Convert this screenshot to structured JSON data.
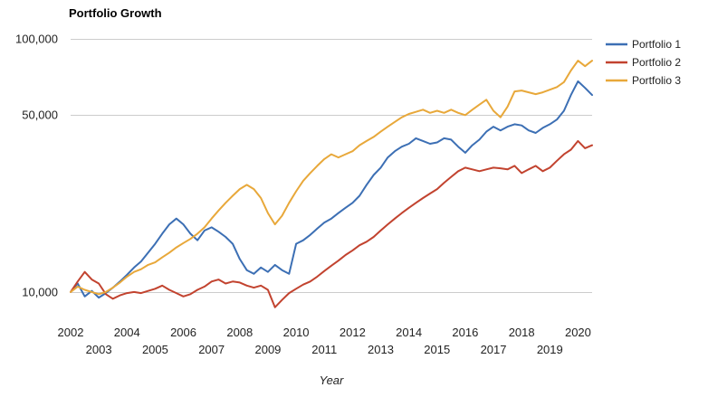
{
  "chart_data": {
    "type": "line",
    "title": "Portfolio Growth",
    "xlabel": "Year",
    "ylabel": "",
    "y_scale": "log",
    "ylim": [
      8000,
      100000
    ],
    "xlim": [
      2002,
      2020.5
    ],
    "y_ticks": [
      {
        "value": 10000,
        "label": "10,000"
      },
      {
        "value": 50000,
        "label": "50,000"
      },
      {
        "value": 100000,
        "label": "100,000"
      }
    ],
    "x_ticks": [
      {
        "value": 2002,
        "label": "2002"
      },
      {
        "value": 2003,
        "label": "2003"
      },
      {
        "value": 2004,
        "label": "2004"
      },
      {
        "value": 2005,
        "label": "2005"
      },
      {
        "value": 2006,
        "label": "2006"
      },
      {
        "value": 2007,
        "label": "2007"
      },
      {
        "value": 2008,
        "label": "2008"
      },
      {
        "value": 2009,
        "label": "2009"
      },
      {
        "value": 2010,
        "label": "2010"
      },
      {
        "value": 2011,
        "label": "2011"
      },
      {
        "value": 2012,
        "label": "2012"
      },
      {
        "value": 2013,
        "label": "2013"
      },
      {
        "value": 2014,
        "label": "2014"
      },
      {
        "value": 2015,
        "label": "2015"
      },
      {
        "value": 2016,
        "label": "2016"
      },
      {
        "value": 2017,
        "label": "2017"
      },
      {
        "value": 2018,
        "label": "2018"
      },
      {
        "value": 2019,
        "label": "2019"
      },
      {
        "value": 2020,
        "label": "2020"
      }
    ],
    "grid": true,
    "legend_position": "right",
    "series": [
      {
        "name": "Portfolio 1",
        "color": "#3c6fb4",
        "points": [
          [
            2002.0,
            10000
          ],
          [
            2002.25,
            10800
          ],
          [
            2002.5,
            9600
          ],
          [
            2002.75,
            10100
          ],
          [
            2003.0,
            9500
          ],
          [
            2003.25,
            9900
          ],
          [
            2003.5,
            10400
          ],
          [
            2003.75,
            11000
          ],
          [
            2004.0,
            11700
          ],
          [
            2004.25,
            12500
          ],
          [
            2004.5,
            13200
          ],
          [
            2004.75,
            14300
          ],
          [
            2005.0,
            15500
          ],
          [
            2005.25,
            17000
          ],
          [
            2005.5,
            18500
          ],
          [
            2005.75,
            19500
          ],
          [
            2006.0,
            18500
          ],
          [
            2006.25,
            17000
          ],
          [
            2006.5,
            16000
          ],
          [
            2006.75,
            17500
          ],
          [
            2007.0,
            18000
          ],
          [
            2007.25,
            17300
          ],
          [
            2007.5,
            16500
          ],
          [
            2007.75,
            15500
          ],
          [
            2008.0,
            13500
          ],
          [
            2008.25,
            12200
          ],
          [
            2008.5,
            11800
          ],
          [
            2008.75,
            12500
          ],
          [
            2009.0,
            12000
          ],
          [
            2009.25,
            12800
          ],
          [
            2009.5,
            12200
          ],
          [
            2009.75,
            11800
          ],
          [
            2010.0,
            15500
          ],
          [
            2010.25,
            16000
          ],
          [
            2010.5,
            16800
          ],
          [
            2010.75,
            17800
          ],
          [
            2011.0,
            18800
          ],
          [
            2011.25,
            19500
          ],
          [
            2011.5,
            20500
          ],
          [
            2011.75,
            21500
          ],
          [
            2012.0,
            22500
          ],
          [
            2012.25,
            24000
          ],
          [
            2012.5,
            26500
          ],
          [
            2012.75,
            29000
          ],
          [
            2013.0,
            31000
          ],
          [
            2013.25,
            34000
          ],
          [
            2013.5,
            36000
          ],
          [
            2013.75,
            37500
          ],
          [
            2014.0,
            38500
          ],
          [
            2014.25,
            40500
          ],
          [
            2014.5,
            39500
          ],
          [
            2014.75,
            38500
          ],
          [
            2015.0,
            39000
          ],
          [
            2015.25,
            40500
          ],
          [
            2015.5,
            40000
          ],
          [
            2015.75,
            37500
          ],
          [
            2016.0,
            35500
          ],
          [
            2016.25,
            38000
          ],
          [
            2016.5,
            40000
          ],
          [
            2016.75,
            43000
          ],
          [
            2017.0,
            45000
          ],
          [
            2017.25,
            43500
          ],
          [
            2017.5,
            45000
          ],
          [
            2017.75,
            46000
          ],
          [
            2018.0,
            45500
          ],
          [
            2018.25,
            43500
          ],
          [
            2018.5,
            42500
          ],
          [
            2018.75,
            44500
          ],
          [
            2019.0,
            46000
          ],
          [
            2019.25,
            48000
          ],
          [
            2019.5,
            52000
          ],
          [
            2019.75,
            60000
          ],
          [
            2020.0,
            68000
          ],
          [
            2020.25,
            64000
          ],
          [
            2020.5,
            60000
          ]
        ]
      },
      {
        "name": "Portfolio 2",
        "color": "#c2432f",
        "points": [
          [
            2002.0,
            10000
          ],
          [
            2002.25,
            11000
          ],
          [
            2002.5,
            12000
          ],
          [
            2002.75,
            11200
          ],
          [
            2003.0,
            10800
          ],
          [
            2003.25,
            9800
          ],
          [
            2003.5,
            9400
          ],
          [
            2003.75,
            9700
          ],
          [
            2004.0,
            9900
          ],
          [
            2004.25,
            10000
          ],
          [
            2004.5,
            9900
          ],
          [
            2004.75,
            10100
          ],
          [
            2005.0,
            10300
          ],
          [
            2005.25,
            10600
          ],
          [
            2005.5,
            10200
          ],
          [
            2005.75,
            9900
          ],
          [
            2006.0,
            9600
          ],
          [
            2006.25,
            9800
          ],
          [
            2006.5,
            10200
          ],
          [
            2006.75,
            10500
          ],
          [
            2007.0,
            11000
          ],
          [
            2007.25,
            11200
          ],
          [
            2007.5,
            10800
          ],
          [
            2007.75,
            11000
          ],
          [
            2008.0,
            10900
          ],
          [
            2008.25,
            10600
          ],
          [
            2008.5,
            10400
          ],
          [
            2008.75,
            10600
          ],
          [
            2009.0,
            10200
          ],
          [
            2009.25,
            8700
          ],
          [
            2009.5,
            9300
          ],
          [
            2009.75,
            9900
          ],
          [
            2010.0,
            10300
          ],
          [
            2010.25,
            10700
          ],
          [
            2010.5,
            11000
          ],
          [
            2010.75,
            11500
          ],
          [
            2011.0,
            12100
          ],
          [
            2011.25,
            12700
          ],
          [
            2011.5,
            13300
          ],
          [
            2011.75,
            14000
          ],
          [
            2012.0,
            14600
          ],
          [
            2012.25,
            15300
          ],
          [
            2012.5,
            15800
          ],
          [
            2012.75,
            16500
          ],
          [
            2013.0,
            17500
          ],
          [
            2013.25,
            18500
          ],
          [
            2013.5,
            19500
          ],
          [
            2013.75,
            20500
          ],
          [
            2014.0,
            21500
          ],
          [
            2014.25,
            22500
          ],
          [
            2014.5,
            23500
          ],
          [
            2014.75,
            24500
          ],
          [
            2015.0,
            25500
          ],
          [
            2015.25,
            27000
          ],
          [
            2015.5,
            28500
          ],
          [
            2015.75,
            30000
          ],
          [
            2016.0,
            31000
          ],
          [
            2016.25,
            30500
          ],
          [
            2016.5,
            30000
          ],
          [
            2016.75,
            30500
          ],
          [
            2017.0,
            31000
          ],
          [
            2017.25,
            30800
          ],
          [
            2017.5,
            30500
          ],
          [
            2017.75,
            31500
          ],
          [
            2018.0,
            29500
          ],
          [
            2018.25,
            30500
          ],
          [
            2018.5,
            31500
          ],
          [
            2018.75,
            30000
          ],
          [
            2019.0,
            31000
          ],
          [
            2019.25,
            33000
          ],
          [
            2019.5,
            35000
          ],
          [
            2019.75,
            36500
          ],
          [
            2020.0,
            39500
          ],
          [
            2020.25,
            37000
          ],
          [
            2020.5,
            38000
          ]
        ]
      },
      {
        "name": "Portfolio 3",
        "color": "#e8a83a",
        "points": [
          [
            2002.0,
            10000
          ],
          [
            2002.25,
            10500
          ],
          [
            2002.5,
            10200
          ],
          [
            2002.75,
            10000
          ],
          [
            2003.0,
            9800
          ],
          [
            2003.25,
            10000
          ],
          [
            2003.5,
            10400
          ],
          [
            2003.75,
            10900
          ],
          [
            2004.0,
            11500
          ],
          [
            2004.25,
            12000
          ],
          [
            2004.5,
            12300
          ],
          [
            2004.75,
            12800
          ],
          [
            2005.0,
            13100
          ],
          [
            2005.25,
            13700
          ],
          [
            2005.5,
            14300
          ],
          [
            2005.75,
            15000
          ],
          [
            2006.0,
            15600
          ],
          [
            2006.25,
            16200
          ],
          [
            2006.5,
            17000
          ],
          [
            2006.75,
            18000
          ],
          [
            2007.0,
            19500
          ],
          [
            2007.25,
            21000
          ],
          [
            2007.5,
            22500
          ],
          [
            2007.75,
            24000
          ],
          [
            2008.0,
            25500
          ],
          [
            2008.25,
            26500
          ],
          [
            2008.5,
            25500
          ],
          [
            2008.75,
            23500
          ],
          [
            2009.0,
            20500
          ],
          [
            2009.25,
            18500
          ],
          [
            2009.5,
            20000
          ],
          [
            2009.75,
            22500
          ],
          [
            2010.0,
            25000
          ],
          [
            2010.25,
            27500
          ],
          [
            2010.5,
            29500
          ],
          [
            2010.75,
            31500
          ],
          [
            2011.0,
            33500
          ],
          [
            2011.25,
            35000
          ],
          [
            2011.5,
            34000
          ],
          [
            2011.75,
            35000
          ],
          [
            2012.0,
            36000
          ],
          [
            2012.25,
            38000
          ],
          [
            2012.5,
            39500
          ],
          [
            2012.75,
            41000
          ],
          [
            2013.0,
            43000
          ],
          [
            2013.25,
            45000
          ],
          [
            2013.5,
            47000
          ],
          [
            2013.75,
            49000
          ],
          [
            2014.0,
            50500
          ],
          [
            2014.25,
            51500
          ],
          [
            2014.5,
            52500
          ],
          [
            2014.75,
            51000
          ],
          [
            2015.0,
            52000
          ],
          [
            2015.25,
            51000
          ],
          [
            2015.5,
            52500
          ],
          [
            2015.75,
            51000
          ],
          [
            2016.0,
            50000
          ],
          [
            2016.25,
            52500
          ],
          [
            2016.5,
            55000
          ],
          [
            2016.75,
            57500
          ],
          [
            2017.0,
            52000
          ],
          [
            2017.25,
            49000
          ],
          [
            2017.5,
            54000
          ],
          [
            2017.75,
            62000
          ],
          [
            2018.0,
            62500
          ],
          [
            2018.25,
            61500
          ],
          [
            2018.5,
            60500
          ],
          [
            2018.75,
            61500
          ],
          [
            2019.0,
            63000
          ],
          [
            2019.25,
            64500
          ],
          [
            2019.5,
            67500
          ],
          [
            2019.75,
            75000
          ],
          [
            2020.0,
            82000
          ],
          [
            2020.25,
            78000
          ],
          [
            2020.5,
            82000
          ]
        ]
      }
    ]
  }
}
